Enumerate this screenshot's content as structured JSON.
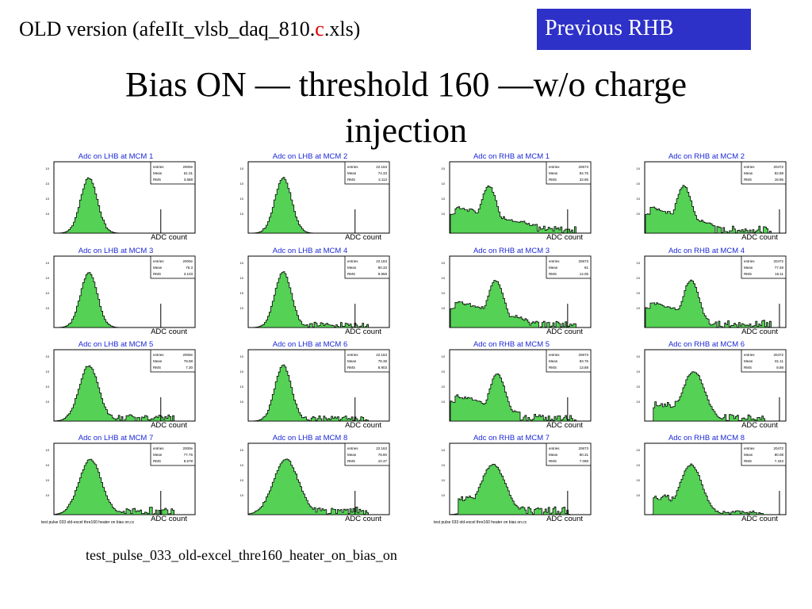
{
  "header": {
    "old_prefix": "OLD version (afeIIt_vlsb_daq_810.",
    "old_red": "c",
    "old_suffix": ".xls)",
    "previous_button": "Previous RHB",
    "title_line1": "Bias ON — threshold 160 —w/o charge",
    "title_line2": "injection"
  },
  "footnote": "test_pulse_033_old-excel_thre160_heater_on_bias_on",
  "panel_footer_left": "test pulse 033 old-excel thre160 heater on bias on.cc",
  "panel_footer_right": "test pulse 033 old-excel thre160 heater on bias on.cc",
  "fill_color": "#55d155",
  "chart_data": [
    {
      "type": "area",
      "title": "Adc on LHB at MCM 1",
      "xlabel": "ADC count",
      "stats": [
        "2000e",
        "61.31",
        "3.688"
      ],
      "shape": "single",
      "peak": 0.24,
      "width": 0.06,
      "tail": 0.0,
      "spike": 0.76
    },
    {
      "type": "area",
      "title": "Adc on LHB at MCM 2",
      "xlabel": "ADC count",
      "stats": [
        "22.163",
        "74.33",
        "3.113"
      ],
      "shape": "single",
      "peak": 0.24,
      "width": 0.06,
      "tail": 0.0,
      "spike": 0.76
    },
    {
      "type": "area",
      "title": "Adc on RHB at MCM 1",
      "xlabel": "ADC count",
      "stats": [
        "20673",
        "84.76",
        "33.85"
      ],
      "shape": "broad",
      "peak": 0.27,
      "width": 0.06,
      "tail": 0.62,
      "spike": 0.84
    },
    {
      "type": "area",
      "title": "Adc on RHB at MCM 2",
      "xlabel": "ADC count",
      "stats": [
        "20472",
        "82.88",
        "18.85"
      ],
      "shape": "broad",
      "peak": 0.27,
      "width": 0.06,
      "tail": 0.5,
      "spike": 0.96
    },
    {
      "type": "area",
      "title": "Adc on LHB at MCM 3",
      "xlabel": "ADC count",
      "stats": [
        "2000e",
        "76.3",
        "3.103"
      ],
      "shape": "single",
      "peak": 0.24,
      "width": 0.06,
      "tail": 0.0,
      "spike": 0.76
    },
    {
      "type": "area",
      "title": "Adc on LHB at MCM 4",
      "xlabel": "ADC count",
      "stats": [
        "22.163",
        "80.33",
        "9.868"
      ],
      "shape": "single",
      "peak": 0.24,
      "width": 0.06,
      "tail": 0.2,
      "spike": 0.76
    },
    {
      "type": "area",
      "title": "Adc on RHB at MCM 3",
      "xlabel": "ADC count",
      "stats": [
        "20673",
        "81",
        "14.05"
      ],
      "shape": "broad",
      "peak": 0.32,
      "width": 0.06,
      "tail": 0.55,
      "spike": 0.84
    },
    {
      "type": "area",
      "title": "Adc on RHB at MCM 4",
      "xlabel": "ADC count",
      "stats": [
        "20472",
        "77.48",
        "16.11"
      ],
      "shape": "broad",
      "peak": 0.32,
      "width": 0.06,
      "tail": 0.45,
      "spike": 0.96
    },
    {
      "type": "area",
      "title": "Adc on LHB at MCM 5",
      "xlabel": "ADC count",
      "stats": [
        "2000e",
        "78.88",
        "7.30"
      ],
      "shape": "single",
      "peak": 0.24,
      "width": 0.07,
      "tail": 0.25,
      "spike": 0.76
    },
    {
      "type": "area",
      "title": "Adc on LHB at MCM 6",
      "xlabel": "ADC count",
      "stats": [
        "22.163",
        "78.38",
        "8.903"
      ],
      "shape": "single",
      "peak": 0.24,
      "width": 0.06,
      "tail": 0.2,
      "spike": 0.76
    },
    {
      "type": "area",
      "title": "Adc on RHB at MCM 5",
      "xlabel": "ADC count",
      "stats": [
        "20673",
        "83.76",
        "13.88"
      ],
      "shape": "broad",
      "peak": 0.33,
      "width": 0.06,
      "tail": 0.5,
      "spike": 0.84
    },
    {
      "type": "area",
      "title": "Adc on RHB at MCM 6",
      "xlabel": "ADC count",
      "stats": [
        "20472",
        "81.11",
        "8.88"
      ],
      "shape": "mid",
      "peak": 0.34,
      "width": 0.08,
      "tail": 0.25,
      "spike": 0.96
    },
    {
      "type": "area",
      "title": "Adc on LHB at MCM 7",
      "xlabel": "ADC count",
      "stats": [
        "2000e",
        "77.76",
        "8.678"
      ],
      "shape": "single",
      "peak": 0.25,
      "width": 0.08,
      "tail": 0.3,
      "spike": 0.76
    },
    {
      "type": "area",
      "title": "Adc on LHB at MCM 8",
      "xlabel": "ADC count",
      "stats": [
        "22.163",
        "78.80",
        "10.37"
      ],
      "shape": "single",
      "peak": 0.26,
      "width": 0.09,
      "tail": 0.3,
      "spike": 0.76
    },
    {
      "type": "area",
      "title": "Adc on RHB at MCM 7",
      "xlabel": "ADC count",
      "stats": [
        "20673",
        "80.31",
        "7.098"
      ],
      "shape": "mid",
      "peak": 0.3,
      "width": 0.09,
      "tail": 0.3,
      "spike": 0.84
    },
    {
      "type": "area",
      "title": "Adc on RHB at MCM 8",
      "xlabel": "ADC count",
      "stats": [
        "20472",
        "80.08",
        "7.343"
      ],
      "shape": "mid",
      "peak": 0.32,
      "width": 0.08,
      "tail": 0.15,
      "spike": 0.96
    }
  ]
}
